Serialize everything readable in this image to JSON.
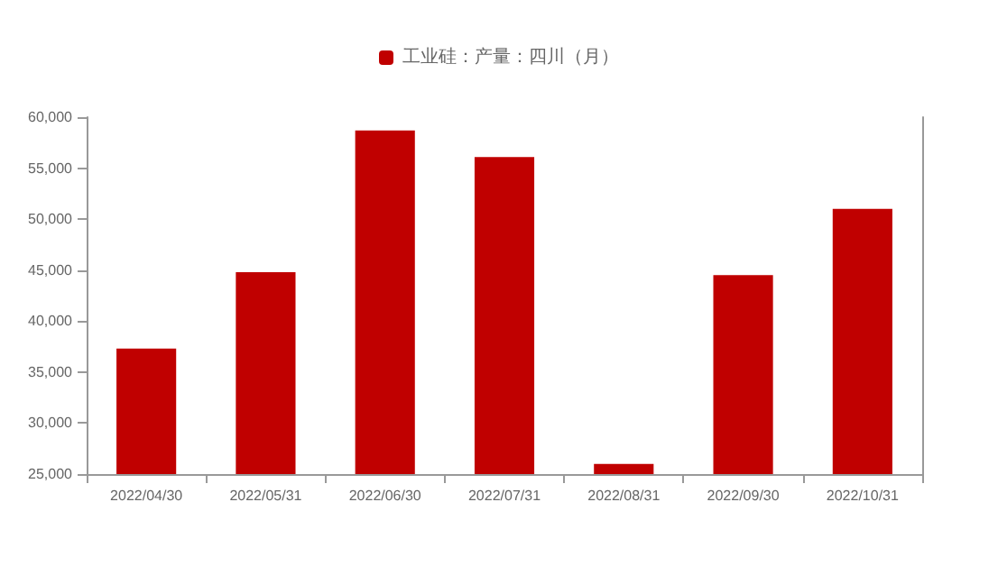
{
  "chart_data": {
    "type": "bar",
    "categories": [
      "2022/04/30",
      "2022/05/31",
      "2022/06/30",
      "2022/07/31",
      "2022/08/31",
      "2022/09/30",
      "2022/10/31"
    ],
    "series": [
      {
        "name": "工业硅：产量：四川（月）",
        "color": "#c00000",
        "values": [
          37300,
          44800,
          58700,
          56100,
          26000,
          44500,
          51000
        ]
      }
    ],
    "ylim": [
      25000,
      60000
    ],
    "yticks": [
      {
        "value": 25000,
        "label": "25,000"
      },
      {
        "value": 30000,
        "label": "30,000"
      },
      {
        "value": 35000,
        "label": "35,000"
      },
      {
        "value": 40000,
        "label": "40,000"
      },
      {
        "value": 45000,
        "label": "45,000"
      },
      {
        "value": 50000,
        "label": "50,000"
      },
      {
        "value": 55000,
        "label": "55,000"
      },
      {
        "value": 60000,
        "label": "60,000"
      }
    ],
    "grid": false,
    "legend": "top"
  }
}
